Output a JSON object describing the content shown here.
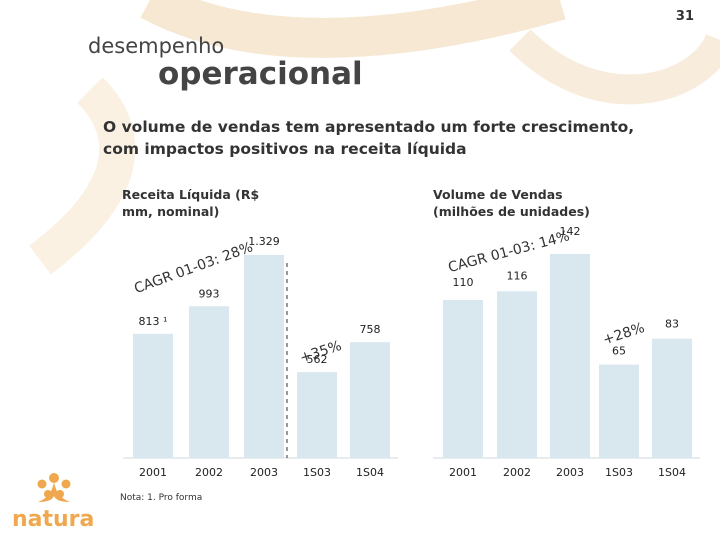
{
  "page": {
    "number": "31"
  },
  "header": {
    "title_line1": "desempenho",
    "title_line2": "operacional"
  },
  "subtitle": "O volume de vendas tem apresentado um forte crescimento, com impactos positivos na receita líquida",
  "note": "Nota: 1. Pro forma",
  "brand": {
    "name": "natura",
    "accent": "#f0a84e",
    "bar_color": "#d9e7ef"
  },
  "chart_data": [
    {
      "type": "bar",
      "title": "Receita Líquida (R$ mm, nominal)",
      "categories": [
        "2001",
        "2002",
        "2003",
        "1S03",
        "1S04"
      ],
      "values": [
        813,
        993,
        1329,
        562,
        758
      ],
      "value_labels": [
        "813 ¹",
        "993",
        "1.329",
        "562",
        "758"
      ],
      "annotations": [
        {
          "text": "CAGR 01-03: 28%"
        },
        {
          "text": "+35%"
        }
      ]
    },
    {
      "type": "bar",
      "title": "Volume de Vendas (milhões de unidades)",
      "categories": [
        "2001",
        "2002",
        "2003",
        "1S03",
        "1S04"
      ],
      "values": [
        110,
        116,
        142,
        65,
        83
      ],
      "value_labels": [
        "110",
        "116",
        "142",
        "65",
        "83"
      ],
      "annotations": [
        {
          "text": "CAGR 01-03: 14%"
        },
        {
          "text": "+28%"
        }
      ]
    }
  ]
}
